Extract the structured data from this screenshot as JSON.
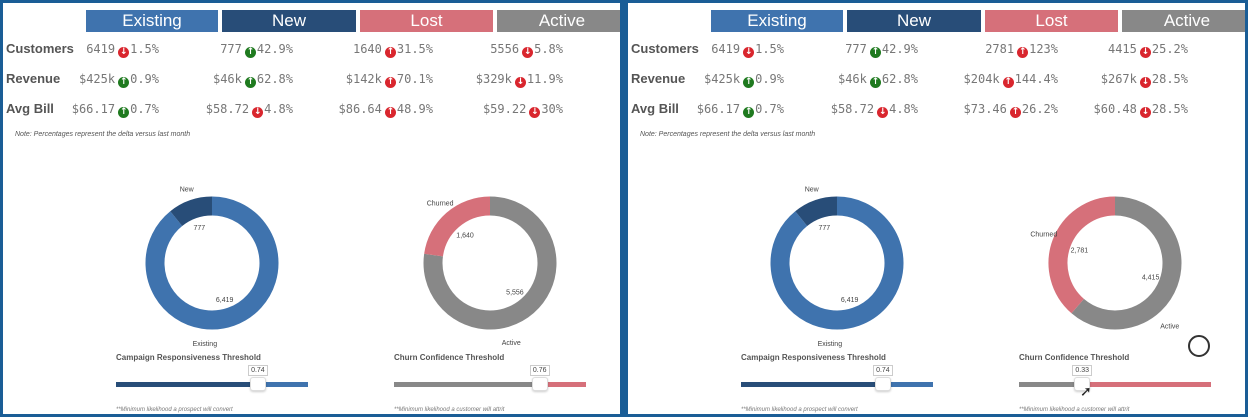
{
  "colors": {
    "existing": "#3f73ae",
    "new": "#284d78",
    "lost": "#d6707a",
    "active": "#888888",
    "up_good": "#1f7a1f",
    "bad": "#d9262e"
  },
  "panels": [
    {
      "headers": [
        "Existing",
        "New",
        "Lost",
        "Active"
      ],
      "row_labels": [
        "Customers",
        "Revenue",
        "Avg Bill"
      ],
      "rows": [
        [
          {
            "v": "6419",
            "d": "1.5%",
            "dir": "down",
            "c": "bad"
          },
          {
            "v": "777",
            "d": "42.9%",
            "dir": "up",
            "c": "good"
          },
          {
            "v": "1640",
            "d": "31.5%",
            "dir": "up",
            "c": "bad"
          },
          {
            "v": "5556",
            "d": "5.8%",
            "dir": "down",
            "c": "bad"
          }
        ],
        [
          {
            "v": "$425k",
            "d": "0.9%",
            "dir": "up",
            "c": "good"
          },
          {
            "v": "$46k",
            "d": "62.8%",
            "dir": "up",
            "c": "good"
          },
          {
            "v": "$142k",
            "d": "70.1%",
            "dir": "up",
            "c": "bad"
          },
          {
            "v": "$329k",
            "d": "11.9%",
            "dir": "down",
            "c": "bad"
          }
        ],
        [
          {
            "v": "$66.17",
            "d": "0.7%",
            "dir": "up",
            "c": "good"
          },
          {
            "v": "$58.72",
            "d": "4.8%",
            "dir": "down",
            "c": "bad"
          },
          {
            "v": "$86.64",
            "d": "48.9%",
            "dir": "up",
            "c": "bad"
          },
          {
            "v": "$59.22",
            "d": "30%",
            "dir": "down",
            "c": "bad"
          }
        ]
      ],
      "note": "Note: Percentages represent the delta versus last month",
      "donut1": {
        "first": {
          "label": "New",
          "value": 777,
          "text": "777"
        },
        "second": {
          "label": "Existing",
          "value": 6419,
          "text": "6,419"
        }
      },
      "donut2": {
        "first": {
          "label": "Churned",
          "value": 1640,
          "text": "1,640"
        },
        "second": {
          "label": "Active",
          "value": 5556,
          "text": "5,556"
        }
      },
      "slider1": {
        "label": "Campaign Responsiveness Threshold",
        "value": 0.74,
        "text": "0.74",
        "foot": "**Minimum likelihood a prospect will convert"
      },
      "slider2": {
        "label": "Churn Confidence Threshold",
        "value": 0.76,
        "text": "0.76",
        "foot": "**Minimum likelihood a customer will attrit"
      },
      "gauge": false
    },
    {
      "headers": [
        "Existing",
        "New",
        "Lost",
        "Active"
      ],
      "row_labels": [
        "Customers",
        "Revenue",
        "Avg Bill"
      ],
      "rows": [
        [
          {
            "v": "6419",
            "d": "1.5%",
            "dir": "down",
            "c": "bad"
          },
          {
            "v": "777",
            "d": "42.9%",
            "dir": "up",
            "c": "good"
          },
          {
            "v": "2781",
            "d": "123%",
            "dir": "up",
            "c": "bad"
          },
          {
            "v": "4415",
            "d": "25.2%",
            "dir": "down",
            "c": "bad"
          }
        ],
        [
          {
            "v": "$425k",
            "d": "0.9%",
            "dir": "up",
            "c": "good"
          },
          {
            "v": "$46k",
            "d": "62.8%",
            "dir": "up",
            "c": "good"
          },
          {
            "v": "$204k",
            "d": "144.4%",
            "dir": "up",
            "c": "bad"
          },
          {
            "v": "$267k",
            "d": "28.5%",
            "dir": "down",
            "c": "bad"
          }
        ],
        [
          {
            "v": "$66.17",
            "d": "0.7%",
            "dir": "up",
            "c": "good"
          },
          {
            "v": "$58.72",
            "d": "4.8%",
            "dir": "down",
            "c": "bad"
          },
          {
            "v": "$73.46",
            "d": "26.2%",
            "dir": "up",
            "c": "bad"
          },
          {
            "v": "$60.48",
            "d": "28.5%",
            "dir": "down",
            "c": "bad"
          }
        ]
      ],
      "note": "Note: Percentages represent the delta versus last month",
      "donut1": {
        "first": {
          "label": "New",
          "value": 777,
          "text": "777"
        },
        "second": {
          "label": "Existing",
          "value": 6419,
          "text": "6,419"
        }
      },
      "donut2": {
        "first": {
          "label": "Churned",
          "value": 2781,
          "text": "2,781"
        },
        "second": {
          "label": "Active",
          "value": 4415,
          "text": "4,415"
        }
      },
      "slider1": {
        "label": "Campaign Responsiveness Threshold",
        "value": 0.74,
        "text": "0.74",
        "foot": "**Minimum likelihood a prospect will convert"
      },
      "slider2": {
        "label": "Churn Confidence Threshold",
        "value": 0.33,
        "text": "0.33",
        "foot": "**Minimum likelihood a customer will attrit"
      },
      "gauge": true
    }
  ]
}
